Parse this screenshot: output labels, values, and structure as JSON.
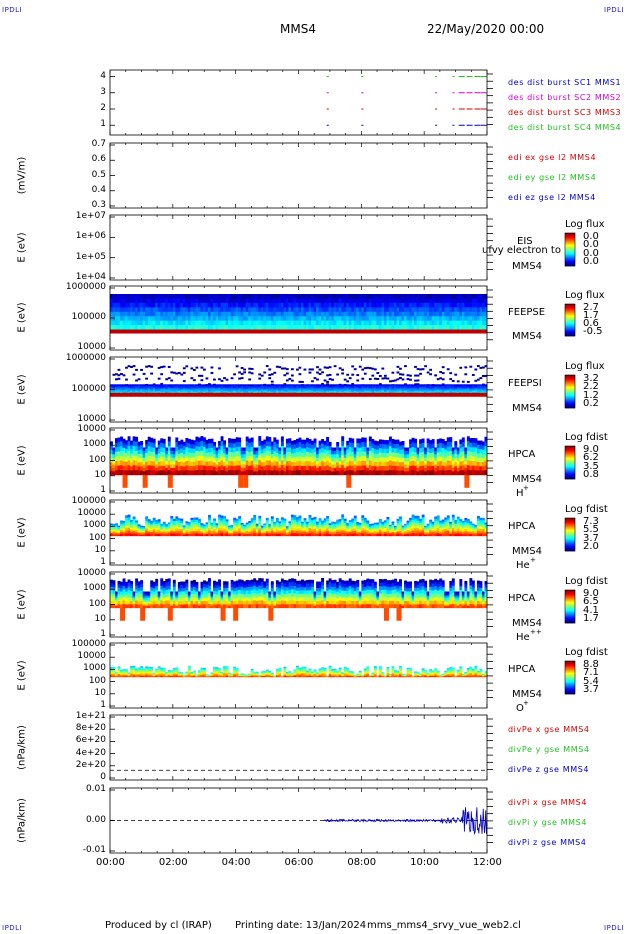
{
  "header": {
    "corner_left_top": "IPDLI",
    "corner_right_top": "IPDLI",
    "corner_left_bottom": "IPDLI",
    "corner_right_bottom": "IPDLI",
    "spacecraft": "MMS4",
    "datetime": "22/May/2020 00:00"
  },
  "footer": {
    "produced_by": "Produced by cl (IRAP)",
    "printing_date": "Printing date: 13/Jan/2024",
    "file": "mms_mms4_srvy_vue_web2.cl"
  },
  "colors": {
    "red": "#d00000",
    "magenta": "#d000d0",
    "green": "#20c020",
    "blue": "#0000c0",
    "darkred": "#b00000"
  },
  "chart_data": {
    "type": "multi-panel time series",
    "x_axis": {
      "range": [
        "00:00",
        "12:00"
      ],
      "ticks": [
        "00:00",
        "02:00",
        "04:00",
        "06:00",
        "08:00",
        "10:00",
        "12:00"
      ]
    },
    "panels": [
      {
        "id": "burst",
        "type": "scatter",
        "ylabel": "",
        "yticks": [
          "4",
          "3",
          "2",
          "1"
        ],
        "legend": [
          {
            "text": "des dist burst SC1 MMS1",
            "color": "#0000c0"
          },
          {
            "text": "des dist burst SC2 MMS2",
            "color": "#d000d0"
          },
          {
            "text": "des dist burst SC3 MMS3",
            "color": "#d00000"
          },
          {
            "text": "des dist burst SC4 MMS4",
            "color": "#20c020"
          }
        ],
        "burst_times_hours": [
          6.9,
          8.0,
          10.35,
          10.9,
          11.1,
          11.35,
          11.6,
          11.8
        ]
      },
      {
        "id": "edi",
        "type": "line",
        "ylabel": "(mV/m)",
        "yticks": [
          "0.7",
          "0.6",
          "0.5",
          "0.4",
          "0.3"
        ],
        "legend": [
          {
            "text": "edi ex gse l2 MMS4",
            "color": "#d00000"
          },
          {
            "text": "edi ey gse l2 MMS4",
            "color": "#20c020"
          },
          {
            "text": "edi ez gse l2 MMS4",
            "color": "#0000c0"
          }
        ]
      },
      {
        "id": "eis",
        "type": "heatmap",
        "ylabel": "E (eV)",
        "yticks": [
          "1e+07",
          "1e+06",
          "1e+05",
          "1e+04"
        ],
        "instrument": "EIS",
        "overlay": "ufvy electron to",
        "spacecraft": "MMS4",
        "colorbar": {
          "title": "Log flux",
          "values": [
            "0.0",
            "0.0",
            "0.0",
            "0.0"
          ]
        }
      },
      {
        "id": "feepse",
        "type": "heatmap",
        "ylabel": "E (eV)",
        "yticks": [
          "1000000",
          "100000",
          "10000"
        ],
        "instrument": "FEEPSE",
        "spacecraft": "MMS4",
        "colorbar": {
          "title": "Log flux",
          "values": [
            "2.7",
            "1.7",
            "0.6",
            "-0.5"
          ]
        }
      },
      {
        "id": "feepsi",
        "type": "heatmap",
        "ylabel": "E (eV)",
        "yticks": [
          "1000000",
          "100000",
          "10000"
        ],
        "instrument": "FEEPSI",
        "spacecraft": "MMS4",
        "colorbar": {
          "title": "Log flux",
          "values": [
            "3.2",
            "2.2",
            "1.2",
            "0.2"
          ]
        }
      },
      {
        "id": "hpca_h",
        "type": "heatmap",
        "ylabel": "E (eV)",
        "yticks": [
          "10000",
          "1000",
          "100",
          "10",
          "1"
        ],
        "instrument": "HPCA",
        "spacecraft": "MMS4",
        "species": "H",
        "species_charge": "+",
        "colorbar": {
          "title": "Log fdist",
          "values": [
            "9.0",
            "6.2",
            "3.5",
            "0.8"
          ]
        }
      },
      {
        "id": "hpca_he",
        "type": "heatmap",
        "ylabel": "E (eV)",
        "yticks": [
          "100000",
          "10000",
          "1000",
          "100",
          "10",
          "1"
        ],
        "instrument": "HPCA",
        "spacecraft": "MMS4",
        "species": "He",
        "species_charge": "+",
        "colorbar": {
          "title": "Log fdist",
          "values": [
            "7.3",
            "5.5",
            "3.7",
            "2.0"
          ]
        }
      },
      {
        "id": "hpca_hepp",
        "type": "heatmap",
        "ylabel": "E (eV)",
        "yticks": [
          "10000",
          "1000",
          "100",
          "10",
          "1"
        ],
        "instrument": "HPCA",
        "spacecraft": "MMS4",
        "species": "He",
        "species_charge": "++",
        "colorbar": {
          "title": "Log fdist",
          "values": [
            "9.0",
            "6.5",
            "4.1",
            "1.7"
          ]
        }
      },
      {
        "id": "hpca_o",
        "type": "heatmap",
        "ylabel": "E (eV)",
        "yticks": [
          "100000",
          "10000",
          "1000",
          "100",
          "10",
          "1"
        ],
        "instrument": "HPCA",
        "spacecraft": "MMS4",
        "species": "O",
        "species_charge": "+",
        "colorbar": {
          "title": "Log fdist",
          "values": [
            "8.8",
            "7.1",
            "5.4",
            "3.7"
          ]
        }
      },
      {
        "id": "divpe",
        "type": "line",
        "ylabel": "(nPa/km)",
        "yticks": [
          "1e+21",
          "8e+20",
          "6e+20",
          "4e+20",
          "2e+20",
          "0"
        ],
        "legend": [
          {
            "text": "divPe x gse MMS4",
            "color": "#d00000"
          },
          {
            "text": "divPe y gse MMS4",
            "color": "#20c020"
          },
          {
            "text": "divPe z gse MMS4",
            "color": "#0000c0"
          }
        ]
      },
      {
        "id": "divpi",
        "type": "line",
        "ylabel": "(nPa/km)",
        "yticks": [
          "0.01",
          "0.00",
          "-0.01"
        ],
        "legend": [
          {
            "text": "divPi x gse MMS4",
            "color": "#d00000"
          },
          {
            "text": "divPi y gse MMS4",
            "color": "#20c020"
          },
          {
            "text": "divPi z gse MMS4",
            "color": "#0000c0"
          }
        ],
        "data_start_hours": 6.8
      }
    ]
  }
}
